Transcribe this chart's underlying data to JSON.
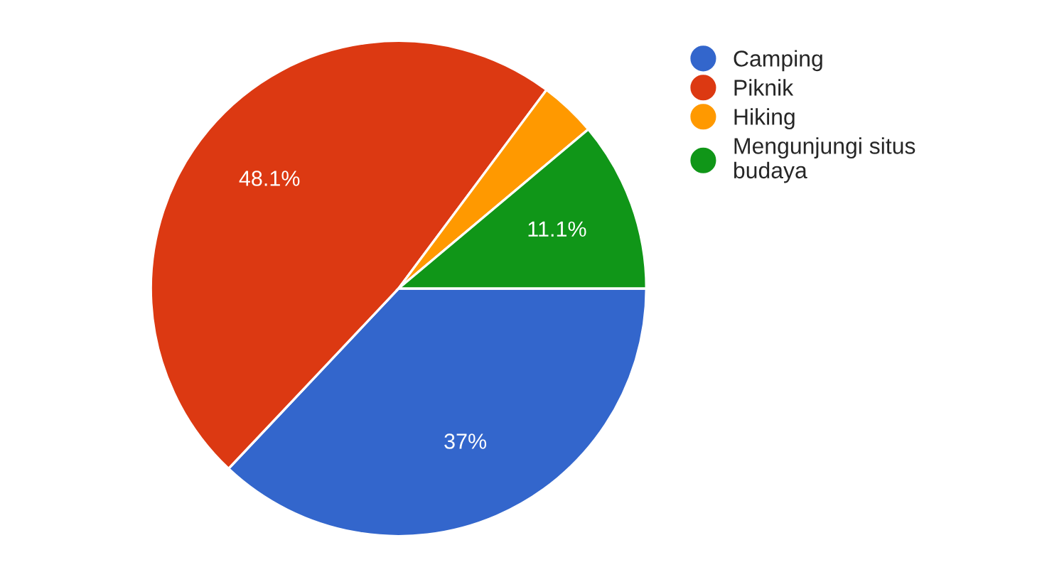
{
  "chart_data": {
    "type": "pie",
    "categories": [
      "Camping",
      "Piknik",
      "Hiking",
      "Mengunjungi situs budaya"
    ],
    "values": [
      37,
      48.1,
      3.7,
      11.1
    ],
    "value_labels": [
      "37%",
      "48.1%",
      null,
      "11.1%"
    ],
    "colors": [
      "#3366cc",
      "#dc3912",
      "#ff9900",
      "#109618"
    ],
    "legend": "right"
  }
}
